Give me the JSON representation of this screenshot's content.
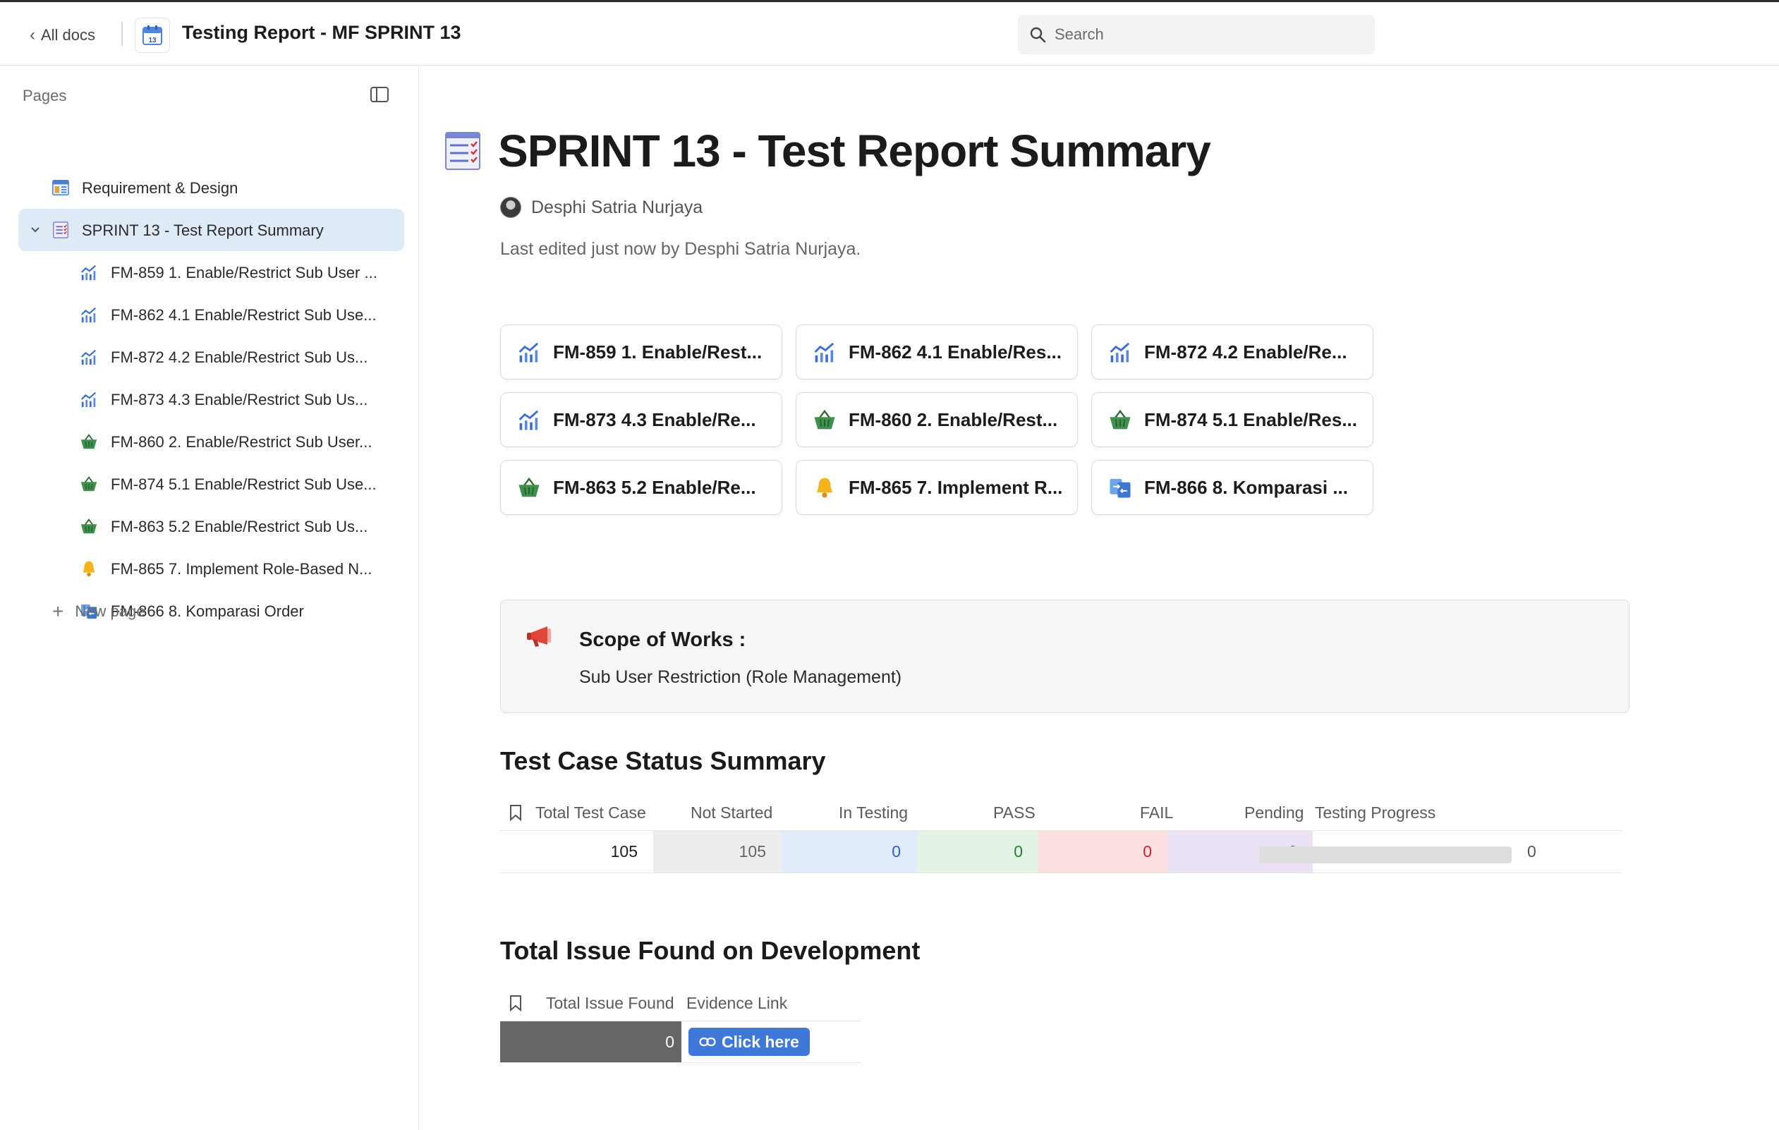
{
  "topbar": {
    "back_label": "All docs",
    "doc_title": "Testing Report - MF SPRINT 13",
    "calendar_day": "13",
    "search_placeholder": "Search"
  },
  "sidebar": {
    "pages_label": "Pages",
    "items": [
      {
        "label": "Requirement & Design",
        "icon": "table-layout-icon",
        "level": 0,
        "active": false
      },
      {
        "label": "SPRINT 13 - Test Report Summary",
        "icon": "checklist-icon",
        "level": 0,
        "active": true,
        "expanded": true
      },
      {
        "label": "FM-859 1. Enable/Restrict Sub User ...",
        "icon": "bar-chart-icon",
        "level": 1
      },
      {
        "label": "FM-862 4.1 Enable/Restrict Sub Use...",
        "icon": "bar-chart-icon",
        "level": 1
      },
      {
        "label": "FM-872 4.2 Enable/Restrict Sub Us...",
        "icon": "bar-chart-icon",
        "level": 1
      },
      {
        "label": "FM-873 4.3 Enable/Restrict Sub Us...",
        "icon": "bar-chart-icon",
        "level": 1
      },
      {
        "label": "FM-860 2. Enable/Restrict Sub User...",
        "icon": "basket-icon",
        "level": 1
      },
      {
        "label": "FM-874 5.1 Enable/Restrict Sub Use...",
        "icon": "basket-icon",
        "level": 1
      },
      {
        "label": "FM-863 5.2 Enable/Restrict Sub Us...",
        "icon": "basket-icon",
        "level": 1
      },
      {
        "label": "FM-865 7. Implement Role-Based N...",
        "icon": "bell-icon",
        "level": 1
      },
      {
        "label": "FM-866 8. Komparasi Order",
        "icon": "compare-icon",
        "level": 1
      }
    ],
    "new_page_label": "New page"
  },
  "main": {
    "title": "SPRINT 13 - Test Report Summary",
    "author": "Desphi Satria Nurjaya",
    "last_edited": "Last edited just now by Desphi Satria Nurjaya.",
    "cards": [
      {
        "label": "FM-859 1. Enable/Rest...",
        "icon": "bar-chart-icon"
      },
      {
        "label": "FM-862 4.1 Enable/Res...",
        "icon": "bar-chart-icon"
      },
      {
        "label": "FM-872 4.2 Enable/Re...",
        "icon": "bar-chart-icon"
      },
      {
        "label": "FM-873 4.3 Enable/Re...",
        "icon": "bar-chart-icon"
      },
      {
        "label": "FM-860 2. Enable/Rest...",
        "icon": "basket-icon"
      },
      {
        "label": "FM-874 5.1 Enable/Res...",
        "icon": "basket-icon"
      },
      {
        "label": "FM-863 5.2 Enable/Re...",
        "icon": "basket-icon"
      },
      {
        "label": "FM-865 7. Implement R...",
        "icon": "bell-icon"
      },
      {
        "label": "FM-866 8. Komparasi ...",
        "icon": "compare-icon"
      }
    ],
    "callout": {
      "title": "Scope of Works :",
      "body": "Sub User Restriction (Role Management)"
    },
    "status_summary": {
      "heading": "Test Case Status Summary",
      "columns": [
        "Total Test Case",
        "Not Started",
        "In Testing",
        "PASS",
        "FAIL",
        "Pending",
        "Testing Progress"
      ],
      "row": {
        "total": "105",
        "not_started": "105",
        "in_testing": "0",
        "pass": "0",
        "fail": "0",
        "pending": "0",
        "progress": "0",
        "progress_fraction": 0
      },
      "colors": {
        "not_started_bg": "#ededed",
        "in_testing_bg": "#e1ebfa",
        "in_testing_fg": "#2f62c4",
        "pass_bg": "#e3f3e5",
        "pass_fg": "#2e7d32",
        "fail_bg": "#fbe0e0",
        "fail_fg": "#c62828",
        "pending_bg": "#ece2f6",
        "pending_fg": "#6a2fb0"
      }
    },
    "issues": {
      "heading": "Total Issue Found on Development",
      "columns": [
        "Total Issue Found",
        "Evidence Link"
      ],
      "total": "0",
      "link_label": "Click here"
    }
  }
}
